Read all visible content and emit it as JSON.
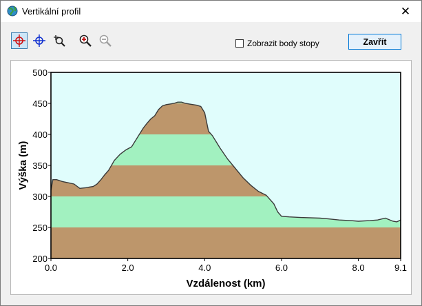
{
  "window": {
    "title": "Vertikální profil",
    "close_glyph": "✕",
    "app_icon": "globe-icon"
  },
  "toolbar": {
    "buttons": [
      {
        "icon": "crosshair-red-icon",
        "active": true
      },
      {
        "icon": "crosshair-blue-icon",
        "active": false
      },
      {
        "icon": "zoom-area-icon",
        "active": false
      },
      {
        "icon": "zoom-in-icon",
        "active": false
      },
      {
        "icon": "zoom-out-icon",
        "active": false,
        "disabled": true
      }
    ],
    "show_track_points_label": "Zobrazit body stopy",
    "show_track_points_checked": false,
    "close_label": "Zavřít"
  },
  "colors": {
    "background": "#e0fdfc",
    "band_brown": "#bd966b",
    "band_green": "#a2f1c0",
    "profile_line": "#3a3a3a",
    "button_border": "#0078d7"
  },
  "chart_data": {
    "type": "area",
    "xlabel": "Vzdálenost  (km)",
    "ylabel": "Výška  (m)",
    "xlim": [
      0,
      9.1
    ],
    "ylim": [
      200,
      500
    ],
    "x_ticks": [
      "0.0",
      "2.0",
      "4.0",
      "6.0",
      "8.0",
      "9.1"
    ],
    "x_tick_values": [
      0,
      2,
      4,
      6,
      8,
      9.1
    ],
    "y_ticks": [
      "200",
      "250",
      "300",
      "350",
      "400",
      "450",
      "500"
    ],
    "y_tick_values": [
      200,
      250,
      300,
      350,
      400,
      450,
      500
    ],
    "elevation_bands": [
      {
        "from": 200,
        "to": 250,
        "color": "#bd966b"
      },
      {
        "from": 250,
        "to": 300,
        "color": "#a2f1c0"
      },
      {
        "from": 300,
        "to": 350,
        "color": "#bd966b"
      },
      {
        "from": 350,
        "to": 400,
        "color": "#a2f1c0"
      },
      {
        "from": 400,
        "to": 450,
        "color": "#bd966b"
      },
      {
        "from": 450,
        "to": 500,
        "color": "#a2f1c0"
      }
    ],
    "series": [
      {
        "x": [
          0.0,
          0.05,
          0.15,
          0.3,
          0.45,
          0.6,
          0.75,
          0.9,
          1.0,
          1.1,
          1.2,
          1.3,
          1.4,
          1.5,
          1.65,
          1.8,
          1.95,
          2.1,
          2.25,
          2.4,
          2.5,
          2.6,
          2.7,
          2.8,
          2.9,
          3.0,
          3.1,
          3.2,
          3.3,
          3.4,
          3.5,
          3.6,
          3.7,
          3.8,
          3.9,
          4.0,
          4.1,
          4.2,
          4.4,
          4.6,
          4.8,
          5.0,
          5.2,
          5.4,
          5.6,
          5.8,
          5.9,
          6.0,
          6.2,
          6.5,
          7.0,
          7.2,
          7.5,
          7.8,
          8.0,
          8.3,
          8.5,
          8.7,
          8.9,
          9.0,
          9.1
        ],
        "y": [
          310,
          327,
          327,
          324,
          322,
          320,
          313,
          314,
          315,
          316,
          320,
          327,
          335,
          342,
          358,
          368,
          375,
          380,
          395,
          410,
          418,
          425,
          430,
          440,
          446,
          448,
          449,
          450,
          452,
          452,
          450,
          449,
          448,
          447,
          445,
          435,
          405,
          398,
          378,
          360,
          345,
          330,
          318,
          308,
          302,
          288,
          275,
          268,
          267,
          266,
          265,
          264,
          262,
          261,
          260,
          261,
          262,
          265,
          260,
          259,
          262
        ]
      }
    ]
  }
}
